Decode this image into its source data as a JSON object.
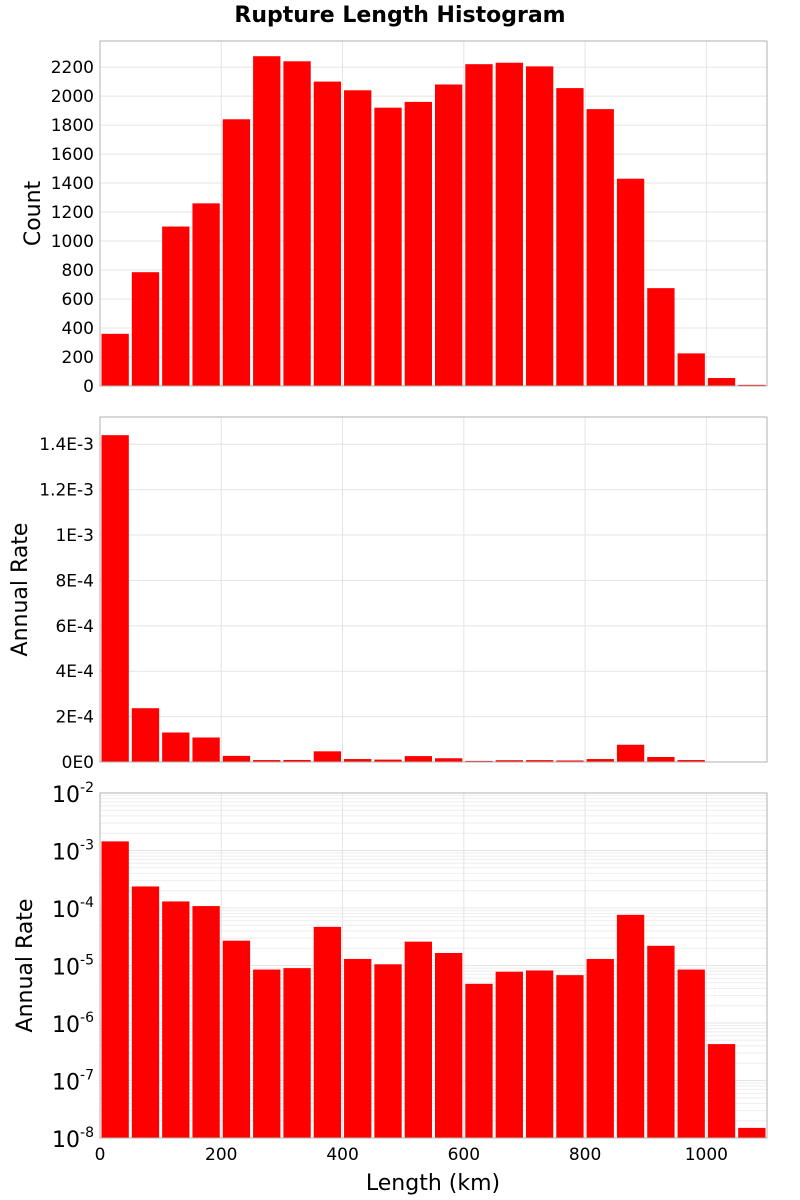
{
  "chart_data": {
    "type": "bar",
    "title": "Rupture Length Histogram",
    "xlabel": "Length (km)",
    "bin_width": 50,
    "xlim": [
      0,
      1100
    ],
    "x_ticks": [
      0,
      200,
      400,
      600,
      800,
      1000
    ],
    "bar_color": "#ff0000",
    "grid": true,
    "bin_centers": [
      25,
      75,
      125,
      175,
      225,
      275,
      325,
      375,
      425,
      475,
      525,
      575,
      625,
      675,
      725,
      775,
      825,
      875,
      925,
      975,
      1025,
      1075
    ],
    "panels": [
      {
        "ylabel": "Count",
        "scale": "linear",
        "ylim": [
          0,
          2380
        ],
        "y_ticks": [
          0,
          200,
          400,
          600,
          800,
          1000,
          1200,
          1400,
          1600,
          1800,
          2000,
          2200
        ],
        "y_tick_labels": [
          "0",
          "200",
          "400",
          "600",
          "800",
          "1000",
          "1200",
          "1400",
          "1600",
          "1800",
          "2000",
          "2200"
        ],
        "values": [
          360,
          785,
          1100,
          1260,
          1840,
          2275,
          2240,
          2100,
          2040,
          1920,
          1960,
          2080,
          2220,
          2230,
          2205,
          2055,
          1910,
          1430,
          675,
          225,
          55,
          8
        ]
      },
      {
        "ylabel": "Annual Rate",
        "scale": "linear",
        "ylim": [
          0,
          0.00152
        ],
        "y_ticks": [
          0,
          0.0002,
          0.0004,
          0.0006,
          0.0008,
          0.001,
          0.0012,
          0.0014
        ],
        "y_tick_labels": [
          "0E0",
          "2E-4",
          "4E-4",
          "6E-4",
          "8E-4",
          "1E-3",
          "1.2E-3",
          "1.4E-3"
        ],
        "values": [
          0.00144,
          0.000237,
          0.00013,
          0.000108,
          2.7e-05,
          8.5e-06,
          9e-06,
          4.7e-05,
          1.3e-05,
          1.05e-05,
          2.6e-05,
          1.65e-05,
          4.8e-06,
          7.8e-06,
          8.2e-06,
          6.8e-06,
          1.3e-05,
          7.6e-05,
          2.2e-05,
          8.5e-06,
          4.3e-07,
          1.5e-08
        ]
      },
      {
        "ylabel": "Annual Rate",
        "scale": "log",
        "ylim": [
          1e-08,
          0.01
        ],
        "y_ticks": [
          1e-08,
          1e-07,
          1e-06,
          1e-05,
          0.0001,
          0.001,
          0.01
        ],
        "y_tick_exponents": [
          "-8",
          "-7",
          "-6",
          "-5",
          "-4",
          "-3",
          "-2"
        ],
        "y_tick_base": "10",
        "values": [
          0.00144,
          0.000237,
          0.00013,
          0.000108,
          2.7e-05,
          8.5e-06,
          9e-06,
          4.7e-05,
          1.3e-05,
          1.05e-05,
          2.6e-05,
          1.65e-05,
          4.8e-06,
          7.8e-06,
          8.2e-06,
          6.8e-06,
          1.3e-05,
          7.6e-05,
          2.2e-05,
          8.5e-06,
          4.3e-07,
          1.5e-08
        ]
      }
    ]
  }
}
